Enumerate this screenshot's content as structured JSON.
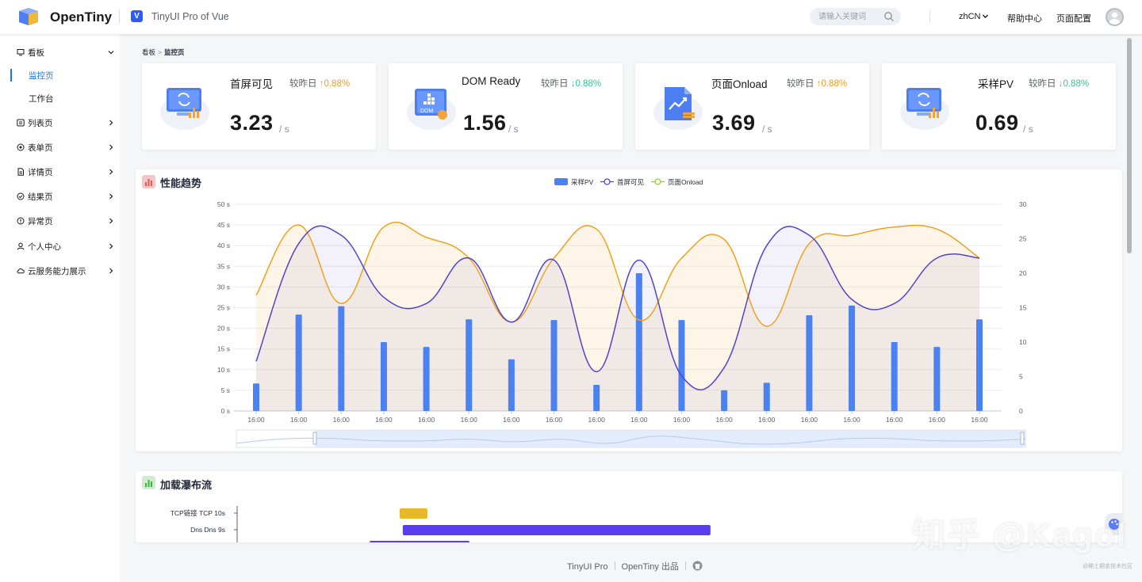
{
  "header": {
    "brand": "OpenTiny",
    "vue_badge": "V",
    "subtitle": "TinyUI Pro of Vue",
    "search_placeholder": "请输入关键词",
    "lang": "zhCN",
    "help": "帮助中心",
    "config": "页面配置"
  },
  "sidebar": {
    "items": [
      {
        "label": "看板",
        "icon": "monitor-icon",
        "expanded": true
      },
      {
        "label": "列表页",
        "icon": "list-icon"
      },
      {
        "label": "表单页",
        "icon": "form-icon"
      },
      {
        "label": "详情页",
        "icon": "detail-icon"
      },
      {
        "label": "结果页",
        "icon": "result-icon"
      },
      {
        "label": "异常页",
        "icon": "exception-icon"
      },
      {
        "label": "个人中心",
        "icon": "user-icon"
      },
      {
        "label": "云服务能力展示",
        "icon": "cloud-icon"
      }
    ],
    "sub_items": [
      {
        "label": "监控页",
        "active": true
      },
      {
        "label": "工作台",
        "active": false
      }
    ]
  },
  "breadcrumb": {
    "parent": "看板",
    "separator": ">",
    "current": "监控页"
  },
  "cards": [
    {
      "title": "首屏可见",
      "compare_label": "较昨日",
      "trend": "up",
      "trend_arrow": "↑",
      "percent": "0.88%",
      "value": "3.23",
      "unit": "/ s",
      "icon": "screen-refresh-icon"
    },
    {
      "title": "DOM Ready",
      "compare_label": "较昨日",
      "trend": "down",
      "trend_arrow": "↓",
      "percent": "0.88%",
      "value": "1.56",
      "unit": "/ s",
      "icon": "dom-icon"
    },
    {
      "title": "页面Onload",
      "compare_label": "较昨日",
      "trend": "up",
      "trend_arrow": "↑",
      "percent": "0.88%",
      "value": "3.69",
      "unit": "/ s",
      "icon": "document-chart-icon"
    },
    {
      "title": "采样PV",
      "compare_label": "较昨日",
      "trend": "down",
      "trend_arrow": "↓",
      "percent": "0.88%",
      "value": "0.69",
      "unit": "/ s",
      "icon": "screen-refresh-icon"
    }
  ],
  "colors": {
    "accent": "#1476ff",
    "bar": "#4a82f2",
    "line_first_screen": "#5243cc",
    "line_onload": "#f0a21c",
    "trend_up": "#f59a23",
    "trend_down": "#3ac295",
    "waterfall_tcp": "#e8b828",
    "waterfall_dns": "#5b3df0"
  },
  "trend_panel": {
    "title": "性能趋势"
  },
  "waterfall_panel": {
    "title": "加载瀑布流",
    "rows": [
      {
        "label": "TCP链接  TCP  10s",
        "start": 0.0,
        "duration": 0.09
      },
      {
        "label": "Dns  Dns  9s",
        "start": 0.01,
        "duration": 1.0
      }
    ]
  },
  "chart_data": {
    "type": "bar",
    "categories": [
      "16:00",
      "16:00",
      "16:00",
      "16:00",
      "16:00",
      "16:00",
      "16:00",
      "16:00",
      "16:00",
      "16:00",
      "16:00",
      "16:00",
      "16:00",
      "16:00",
      "16:00",
      "16:00",
      "16:00",
      "16:00"
    ],
    "left_axis_ticks": [
      "0 s",
      "5 s",
      "10 s",
      "15 s",
      "20 s",
      "25 s",
      "30 s",
      "35 s",
      "40 s",
      "45 s",
      "50 s"
    ],
    "right_axis_ticks": [
      "0",
      "5",
      "10",
      "15",
      "20",
      "25",
      "30"
    ],
    "ylim_left": [
      0,
      50
    ],
    "ylim_right": [
      0,
      30
    ],
    "legend_position": "top-center",
    "grid": true,
    "series": [
      {
        "name": "采样PV",
        "type": "bar",
        "axis": "right",
        "values": [
          4,
          14,
          15.2,
          10,
          9.3,
          13.3,
          7.5,
          13.2,
          3.8,
          20,
          13.2,
          3,
          4.1,
          13.9,
          15.3,
          10,
          9.3,
          13.3
        ]
      },
      {
        "name": "首屏可见",
        "type": "line",
        "axis": "left",
        "values": [
          12,
          40.5,
          42.5,
          27.5,
          26,
          37,
          21.5,
          36.5,
          9.5,
          36.5,
          8.5,
          10.5,
          40,
          42.5,
          27,
          26,
          37,
          37
        ]
      },
      {
        "name": "页面Onload",
        "type": "line",
        "axis": "left",
        "values": [
          28,
          45,
          26,
          44.5,
          42,
          37,
          21.5,
          37,
          44,
          22,
          37,
          41.5,
          20.5,
          40.5,
          42.5,
          44.5,
          44,
          37
        ]
      }
    ]
  },
  "footer": {
    "product": "TinyUI Pro",
    "by": "OpenTiny 出品"
  },
  "watermark": {
    "text": "知乎 @Kagol",
    "small": "@稀土掘金技术社区"
  }
}
